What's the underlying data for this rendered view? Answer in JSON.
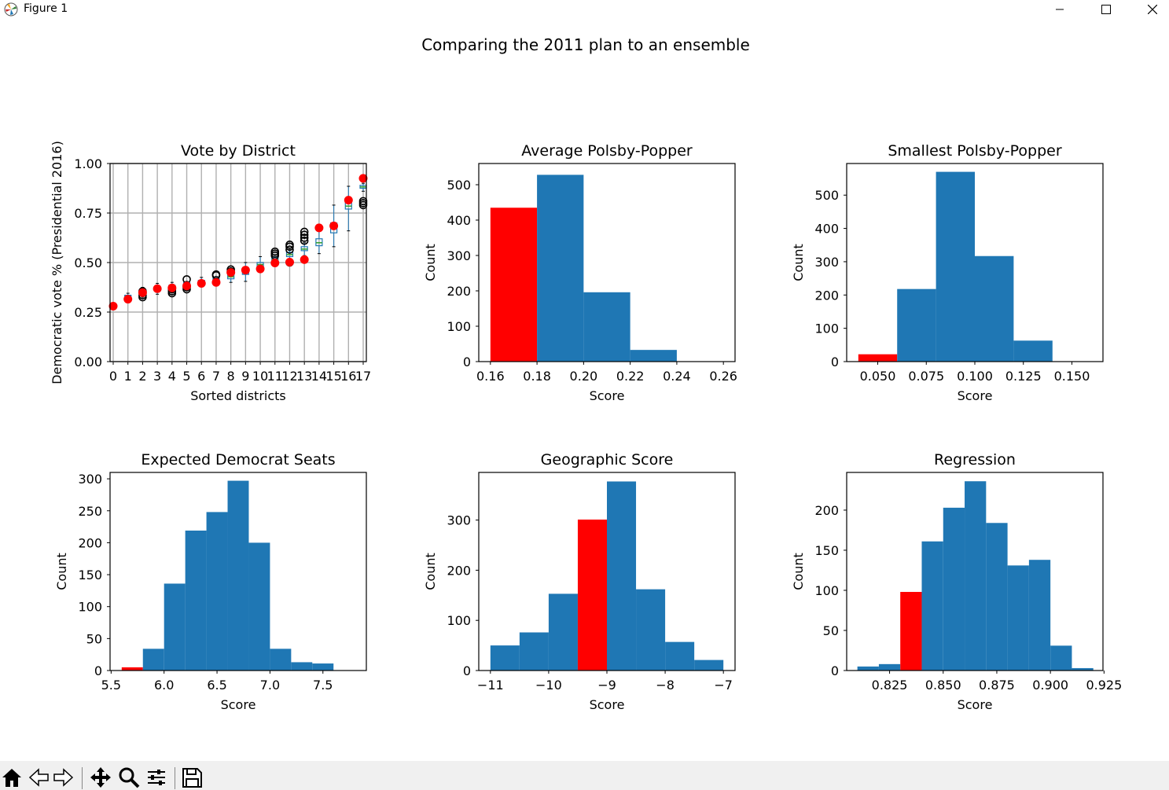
{
  "window": {
    "title": "Figure 1"
  },
  "suptitle": "Comparing the 2011 plan to an ensemble",
  "chart_data": [
    {
      "type": "box",
      "title": "Vote by District",
      "xlabel": "Sorted districts",
      "ylabel": "Democratic vote % (Presidential 2016)",
      "ylim": [
        0.0,
        1.0
      ],
      "yticks": [
        "0.00",
        "0.25",
        "0.50",
        "0.75",
        "1.00"
      ],
      "categories": [
        "0",
        "1",
        "2",
        "3",
        "4",
        "5",
        "6",
        "7",
        "8",
        "9",
        "10",
        "11",
        "12",
        "13",
        "14",
        "15",
        "16",
        "17"
      ],
      "grid": true,
      "boxes": [
        {
          "q1": 0.274,
          "med": 0.28,
          "q3": 0.286,
          "lo": 0.268,
          "hi": 0.292
        },
        {
          "q1": 0.318,
          "med": 0.326,
          "q3": 0.335,
          "lo": 0.305,
          "hi": 0.345
        },
        {
          "q1": 0.338,
          "med": 0.348,
          "q3": 0.36,
          "lo": 0.325,
          "hi": 0.375
        },
        {
          "q1": 0.357,
          "med": 0.366,
          "q3": 0.375,
          "lo": 0.34,
          "hi": 0.395
        },
        {
          "q1": 0.368,
          "med": 0.376,
          "q3": 0.385,
          "lo": 0.355,
          "hi": 0.4
        },
        {
          "q1": 0.382,
          "med": 0.39,
          "q3": 0.399,
          "lo": 0.37,
          "hi": 0.405
        },
        {
          "q1": 0.395,
          "med": 0.403,
          "q3": 0.41,
          "lo": 0.385,
          "hi": 0.425
        },
        {
          "q1": 0.405,
          "med": 0.413,
          "q3": 0.42,
          "lo": 0.39,
          "hi": 0.43
        },
        {
          "q1": 0.418,
          "med": 0.428,
          "q3": 0.438,
          "lo": 0.4,
          "hi": 0.455
        },
        {
          "q1": 0.44,
          "med": 0.452,
          "q3": 0.465,
          "lo": 0.405,
          "hi": 0.5
        },
        {
          "q1": 0.478,
          "med": 0.49,
          "q3": 0.5,
          "lo": 0.455,
          "hi": 0.53
        },
        {
          "q1": 0.505,
          "med": 0.515,
          "q3": 0.525,
          "lo": 0.48,
          "hi": 0.54
        },
        {
          "q1": 0.53,
          "med": 0.54,
          "q3": 0.552,
          "lo": 0.51,
          "hi": 0.565
        },
        {
          "q1": 0.56,
          "med": 0.568,
          "q3": 0.58,
          "lo": 0.535,
          "hi": 0.6
        },
        {
          "q1": 0.585,
          "med": 0.6,
          "q3": 0.62,
          "lo": 0.545,
          "hi": 0.67
        },
        {
          "q1": 0.65,
          "med": 0.675,
          "q3": 0.7,
          "lo": 0.58,
          "hi": 0.79
        },
        {
          "q1": 0.77,
          "med": 0.785,
          "q3": 0.81,
          "lo": 0.66,
          "hi": 0.885
        },
        {
          "q1": 0.875,
          "med": 0.882,
          "q3": 0.89,
          "lo": 0.86,
          "hi": 0.9
        }
      ],
      "outliers": [
        [
          0.335,
          2
        ],
        [
          0.325,
          2
        ],
        [
          0.355,
          2
        ],
        [
          0.345,
          4
        ],
        [
          0.355,
          4
        ],
        [
          0.365,
          4
        ],
        [
          0.365,
          5
        ],
        [
          0.375,
          5
        ],
        [
          0.415,
          5
        ],
        [
          0.435,
          7
        ],
        [
          0.44,
          7
        ],
        [
          0.455,
          8
        ],
        [
          0.465,
          8
        ],
        [
          0.535,
          11
        ],
        [
          0.545,
          11
        ],
        [
          0.555,
          11
        ],
        [
          0.565,
          12
        ],
        [
          0.58,
          12
        ],
        [
          0.59,
          12
        ],
        [
          0.5,
          12
        ],
        [
          0.61,
          13
        ],
        [
          0.625,
          13
        ],
        [
          0.64,
          13
        ],
        [
          0.655,
          13
        ],
        [
          0.79,
          17
        ],
        [
          0.8,
          17
        ],
        [
          0.81,
          17
        ]
      ],
      "plan_values": [
        0.28,
        0.315,
        0.348,
        0.368,
        0.372,
        0.382,
        0.395,
        0.4,
        0.45,
        0.462,
        0.468,
        0.498,
        0.502,
        0.515,
        0.675,
        0.685,
        0.815,
        0.925
      ],
      "colors": {
        "box": "#1f77b4",
        "median": "#2ca02c",
        "plan": "#ff0000",
        "outlier": "#000000"
      }
    },
    {
      "type": "histogram",
      "title": "Average Polsby-Popper",
      "xlabel": "Score",
      "ylabel": "Count",
      "xlim": [
        0.155,
        0.265
      ],
      "ylim": [
        0,
        560
      ],
      "xticks": [
        0.16,
        0.18,
        0.2,
        0.22,
        0.24,
        0.26
      ],
      "xtick_labels": [
        "0.16",
        "0.18",
        "0.20",
        "0.22",
        "0.24",
        "0.26"
      ],
      "yticks": [
        0,
        100,
        200,
        300,
        400,
        500
      ],
      "bins": [
        0.16,
        0.18,
        0.2,
        0.22,
        0.24
      ],
      "counts": [
        435,
        528,
        196,
        33
      ],
      "highlight_index": 0
    },
    {
      "type": "histogram",
      "title": "Smallest Polsby-Popper",
      "xlabel": "Score",
      "ylabel": "Count",
      "xlim": [
        0.034,
        0.166
      ],
      "ylim": [
        0,
        595
      ],
      "xticks": [
        0.05,
        0.075,
        0.1,
        0.125,
        0.15
      ],
      "xtick_labels": [
        "0.050",
        "0.075",
        "0.100",
        "0.125",
        "0.150"
      ],
      "yticks": [
        0,
        100,
        200,
        300,
        400,
        500
      ],
      "bins": [
        0.04,
        0.06,
        0.08,
        0.1,
        0.12,
        0.14
      ],
      "counts": [
        22,
        218,
        570,
        317,
        63
      ],
      "highlight_index": 0
    },
    {
      "type": "histogram",
      "title": "Expected Democrat Seats",
      "xlabel": "Score",
      "ylabel": "Count",
      "xlim": [
        5.49,
        7.91
      ],
      "ylim": [
        0,
        310
      ],
      "xticks": [
        5.5,
        6.0,
        6.5,
        7.0,
        7.5
      ],
      "xtick_labels": [
        "5.5",
        "6.0",
        "6.5",
        "7.0",
        "7.5"
      ],
      "yticks": [
        0,
        50,
        100,
        150,
        200,
        250,
        300
      ],
      "bins": [
        5.6,
        5.8,
        6.0,
        6.2,
        6.4,
        6.6,
        6.8,
        7.0,
        7.2,
        7.4,
        7.6
      ],
      "counts": [
        5,
        34,
        136,
        219,
        248,
        297,
        200,
        34,
        13,
        11
      ],
      "highlight_index": 0
    },
    {
      "type": "histogram",
      "title": "Geographic Score",
      "xlabel": "Score",
      "ylabel": "Count",
      "xlim": [
        -11.2,
        -6.8
      ],
      "ylim": [
        0,
        395
      ],
      "xticks": [
        -11,
        -10,
        -9,
        -8,
        -7
      ],
      "xtick_labels": [
        "−11",
        "−10",
        "−9",
        "−8",
        "−7"
      ],
      "yticks": [
        0,
        100,
        200,
        300
      ],
      "bins": [
        -11.0,
        -10.5,
        -10.0,
        -9.5,
        -9.0,
        -8.5,
        -8.0,
        -7.5,
        -7.0
      ],
      "counts": [
        50,
        76,
        153,
        301,
        377,
        162,
        57,
        21
      ],
      "highlight_index": 3
    },
    {
      "type": "histogram",
      "title": "Regression",
      "xlabel": "Score",
      "ylabel": "Count",
      "xlim": [
        0.805,
        0.9245
      ],
      "ylim": [
        0,
        247
      ],
      "xticks": [
        0.825,
        0.85,
        0.875,
        0.9,
        0.925
      ],
      "xtick_labels": [
        "0.825",
        "0.850",
        "0.875",
        "0.900",
        "0.925"
      ],
      "yticks": [
        0,
        50,
        100,
        150,
        200
      ],
      "bins": [
        0.81,
        0.82,
        0.83,
        0.84,
        0.85,
        0.86,
        0.87,
        0.88,
        0.89,
        0.9,
        0.91,
        0.92
      ],
      "counts": [
        5,
        8,
        98,
        161,
        203,
        236,
        184,
        131,
        138,
        31,
        3
      ],
      "highlight_index": 2
    }
  ],
  "colors": {
    "bar": "#1f77b4",
    "highlight": "#ff0000"
  },
  "toolbar": [
    "home-icon",
    "back-icon",
    "forward-icon",
    "pan-icon",
    "zoom-icon",
    "configure-icon",
    "save-icon"
  ]
}
